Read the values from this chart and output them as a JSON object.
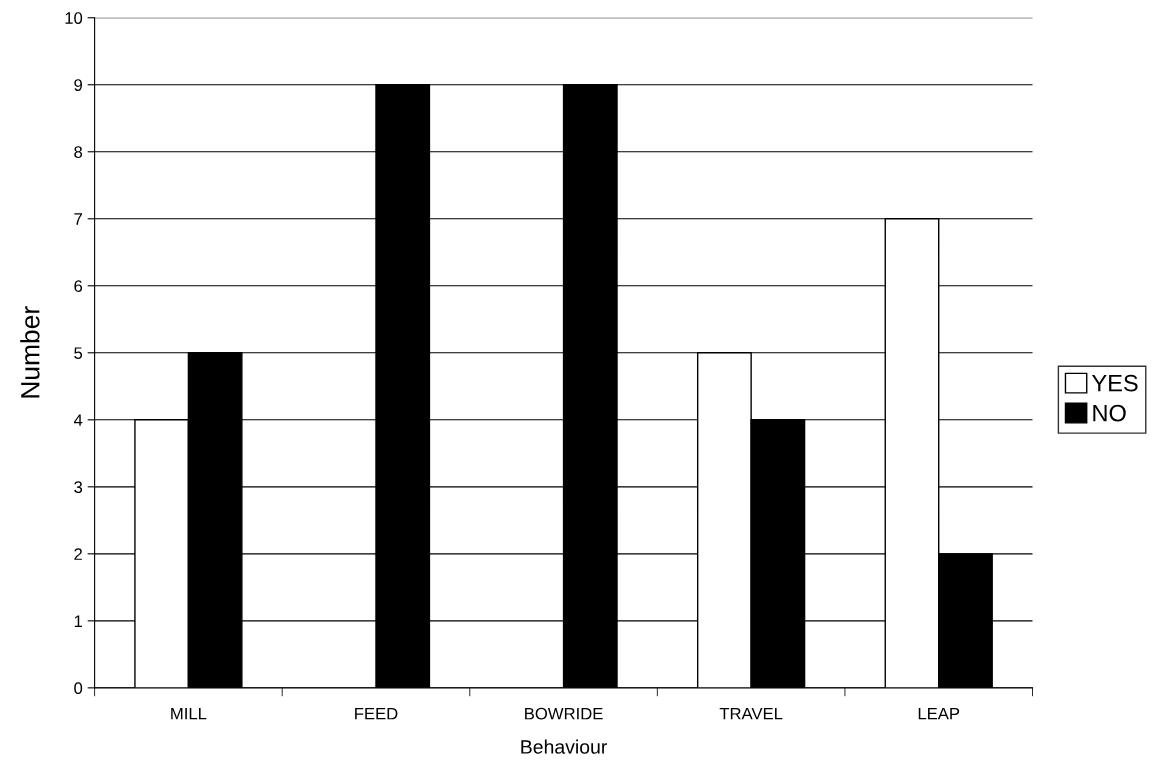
{
  "chart_data": {
    "type": "bar",
    "xlabel": "Behaviour",
    "ylabel": "Number",
    "categories": [
      "MILL",
      "FEED",
      "BOWRIDE",
      "TRAVEL",
      "LEAP"
    ],
    "series": [
      {
        "name": "YES",
        "color": "#ffffff",
        "values": [
          4,
          0,
          0,
          5,
          7
        ]
      },
      {
        "name": "NO",
        "color": "#000000",
        "values": [
          5,
          9,
          9,
          4,
          2
        ]
      }
    ],
    "ylim": [
      0,
      10
    ],
    "yticks": [
      0,
      1,
      2,
      3,
      4,
      5,
      6,
      7,
      8,
      9,
      10
    ],
    "grid": "y",
    "legend": "right"
  }
}
